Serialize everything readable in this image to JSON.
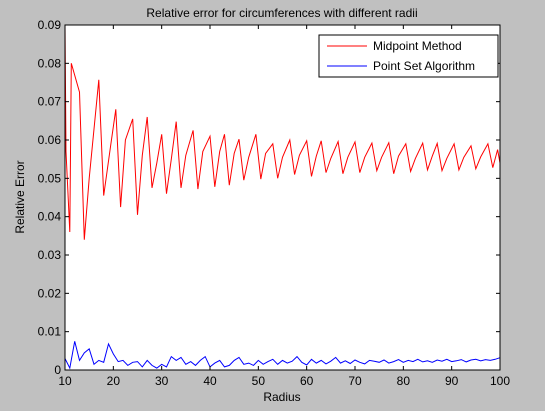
{
  "chart_data": {
    "type": "line",
    "title": "Relative error for circumferences with different radii",
    "xlabel": "Radius",
    "ylabel": "Relative Error",
    "xlim": [
      10,
      100
    ],
    "ylim": [
      0,
      0.09
    ],
    "xticks": [
      "10",
      "20",
      "30",
      "40",
      "50",
      "60",
      "70",
      "80",
      "90",
      "100"
    ],
    "yticks": [
      "0",
      "0.01",
      "0.02",
      "0.03",
      "0.04",
      "0.05",
      "0.06",
      "0.07",
      "0.08",
      "0.09"
    ],
    "legend_position": "top-right",
    "grid": false,
    "series": [
      {
        "name": "Midpoint Method",
        "color": "#ff0000",
        "points": [
          [
            10,
            0.09
          ],
          [
            10.2,
            0.057
          ],
          [
            11,
            0.036
          ],
          [
            11.3,
            0.08
          ],
          [
            13,
            0.0725
          ],
          [
            14,
            0.034
          ],
          [
            15,
            0.05
          ],
          [
            17,
            0.0757
          ],
          [
            18,
            0.0455
          ],
          [
            19.5,
            0.059
          ],
          [
            20.5,
            0.068
          ],
          [
            21.5,
            0.0425
          ],
          [
            22.5,
            0.06
          ],
          [
            24,
            0.0655
          ],
          [
            25,
            0.0405
          ],
          [
            26,
            0.056
          ],
          [
            27,
            0.066
          ],
          [
            28,
            0.0475
          ],
          [
            29,
            0.054
          ],
          [
            30,
            0.0615
          ],
          [
            31,
            0.046
          ],
          [
            32,
            0.055
          ],
          [
            33,
            0.0648
          ],
          [
            34,
            0.0475
          ],
          [
            35,
            0.056
          ],
          [
            36.5,
            0.0625
          ],
          [
            37.5,
            0.0472
          ],
          [
            38.5,
            0.057
          ],
          [
            40,
            0.061
          ],
          [
            41,
            0.0478
          ],
          [
            42,
            0.057
          ],
          [
            43,
            0.0615
          ],
          [
            44,
            0.0482
          ],
          [
            45,
            0.0565
          ],
          [
            46,
            0.0602
          ],
          [
            47,
            0.0495
          ],
          [
            48,
            0.0555
          ],
          [
            49.5,
            0.0615
          ],
          [
            50.5,
            0.0498
          ],
          [
            51.5,
            0.0565
          ],
          [
            53,
            0.059
          ],
          [
            54,
            0.05
          ],
          [
            55,
            0.0555
          ],
          [
            56.5,
            0.06
          ],
          [
            57.5,
            0.051
          ],
          [
            58.5,
            0.056
          ],
          [
            60,
            0.0598
          ],
          [
            61,
            0.0505
          ],
          [
            62,
            0.0558
          ],
          [
            63,
            0.0598
          ],
          [
            64,
            0.0515
          ],
          [
            65,
            0.0552
          ],
          [
            66.5,
            0.0596
          ],
          [
            67.5,
            0.0512
          ],
          [
            68.5,
            0.0555
          ],
          [
            70,
            0.0595
          ],
          [
            71,
            0.0515
          ],
          [
            72,
            0.0555
          ],
          [
            73.5,
            0.0592
          ],
          [
            74.5,
            0.052
          ],
          [
            75.5,
            0.0555
          ],
          [
            77,
            0.0593
          ],
          [
            78,
            0.0512
          ],
          [
            79,
            0.0558
          ],
          [
            80.5,
            0.059
          ],
          [
            81.5,
            0.0518
          ],
          [
            82.5,
            0.0552
          ],
          [
            84,
            0.0592
          ],
          [
            85,
            0.0522
          ],
          [
            86,
            0.0558
          ],
          [
            87,
            0.0591
          ],
          [
            88,
            0.052
          ],
          [
            89,
            0.0552
          ],
          [
            90.5,
            0.059
          ],
          [
            91.5,
            0.0522
          ],
          [
            92.5,
            0.0555
          ],
          [
            94,
            0.0585
          ],
          [
            95,
            0.0525
          ],
          [
            96,
            0.0556
          ],
          [
            97.5,
            0.059
          ],
          [
            98.5,
            0.0528
          ],
          [
            99.5,
            0.0575
          ],
          [
            100,
            0.054
          ]
        ]
      },
      {
        "name": "Point Set Algorithm",
        "color": "#0000ff",
        "points": [
          [
            10,
            0.003
          ],
          [
            11,
            0.0005
          ],
          [
            12,
            0.0075
          ],
          [
            13,
            0.0025
          ],
          [
            14,
            0.0045
          ],
          [
            15,
            0.0055
          ],
          [
            16,
            0.0015
          ],
          [
            17,
            0.0025
          ],
          [
            18,
            0.002
          ],
          [
            19,
            0.0068
          ],
          [
            20,
            0.0042
          ],
          [
            21,
            0.0022
          ],
          [
            22,
            0.0025
          ],
          [
            23,
            0.0012
          ],
          [
            24,
            0.002
          ],
          [
            25,
            0.0022
          ],
          [
            26,
            0.0008
          ],
          [
            27,
            0.0025
          ],
          [
            28,
            0.0012
          ],
          [
            29,
            0.0005
          ],
          [
            30,
            0.0015
          ],
          [
            31,
            0.0008
          ],
          [
            32,
            0.0035
          ],
          [
            33,
            0.0025
          ],
          [
            34,
            0.0033
          ],
          [
            35,
            0.0015
          ],
          [
            36,
            0.0022
          ],
          [
            37,
            0.0012
          ],
          [
            38,
            0.0025
          ],
          [
            39,
            0.0035
          ],
          [
            40,
            0.0008
          ],
          [
            41,
            0.0018
          ],
          [
            42,
            0.0025
          ],
          [
            43,
            0.0008
          ],
          [
            44,
            0.0012
          ],
          [
            45,
            0.0025
          ],
          [
            46,
            0.0033
          ],
          [
            47,
            0.0015
          ],
          [
            48,
            0.0018
          ],
          [
            49,
            0.0012
          ],
          [
            50,
            0.0025
          ],
          [
            51,
            0.0015
          ],
          [
            52,
            0.0022
          ],
          [
            53,
            0.0028
          ],
          [
            54,
            0.0015
          ],
          [
            55,
            0.0025
          ],
          [
            56,
            0.0018
          ],
          [
            57,
            0.0023
          ],
          [
            58,
            0.0035
          ],
          [
            59,
            0.002
          ],
          [
            60,
            0.0013
          ],
          [
            61,
            0.0028
          ],
          [
            62,
            0.0018
          ],
          [
            63,
            0.0025
          ],
          [
            64,
            0.0016
          ],
          [
            65,
            0.0023
          ],
          [
            66,
            0.0033
          ],
          [
            67,
            0.0018
          ],
          [
            68,
            0.0024
          ],
          [
            69,
            0.0017
          ],
          [
            70,
            0.0026
          ],
          [
            71,
            0.002
          ],
          [
            72,
            0.0016
          ],
          [
            73,
            0.0025
          ],
          [
            74,
            0.0023
          ],
          [
            75,
            0.002
          ],
          [
            76,
            0.0026
          ],
          [
            77,
            0.0018
          ],
          [
            78,
            0.0022
          ],
          [
            79,
            0.0027
          ],
          [
            80,
            0.002
          ],
          [
            81,
            0.0025
          ],
          [
            82,
            0.0022
          ],
          [
            83,
            0.0028
          ],
          [
            84,
            0.0021
          ],
          [
            85,
            0.0024
          ],
          [
            86,
            0.002
          ],
          [
            87,
            0.0026
          ],
          [
            88,
            0.0023
          ],
          [
            89,
            0.0028
          ],
          [
            90,
            0.0022
          ],
          [
            91,
            0.0024
          ],
          [
            92,
            0.0027
          ],
          [
            93,
            0.0021
          ],
          [
            94,
            0.0026
          ],
          [
            95,
            0.0028
          ],
          [
            96,
            0.0024
          ],
          [
            97,
            0.0027
          ],
          [
            98,
            0.0025
          ],
          [
            99,
            0.0028
          ],
          [
            100,
            0.0032
          ]
        ]
      }
    ]
  }
}
